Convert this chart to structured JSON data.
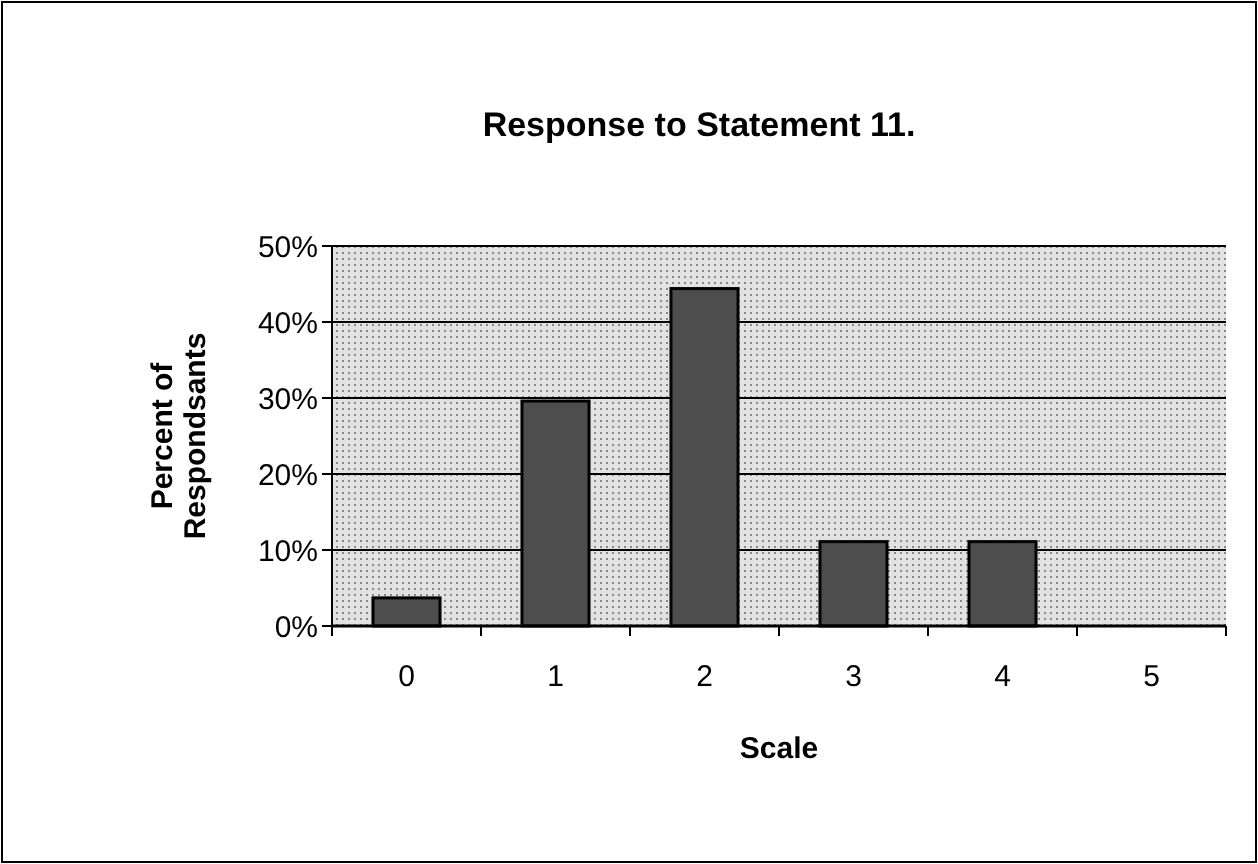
{
  "chart_data": {
    "type": "bar",
    "title": "Response to Statement 11.",
    "xlabel": "Scale",
    "ylabel": "Percent of\nRespondsants",
    "categories": [
      "0",
      "1",
      "2",
      "3",
      "4",
      "5"
    ],
    "values": [
      3.7,
      29.6,
      44.4,
      11.1,
      11.1,
      0
    ],
    "color": "#4d4d4d",
    "ylim": [
      0,
      50
    ],
    "yticks": [
      {
        "value": 0,
        "label": "0%"
      },
      {
        "value": 10,
        "label": "10%"
      },
      {
        "value": 20,
        "label": "20%"
      },
      {
        "value": 30,
        "label": "30%"
      },
      {
        "value": 40,
        "label": "40%"
      },
      {
        "value": 50,
        "label": "50%"
      }
    ],
    "grid": "y"
  }
}
